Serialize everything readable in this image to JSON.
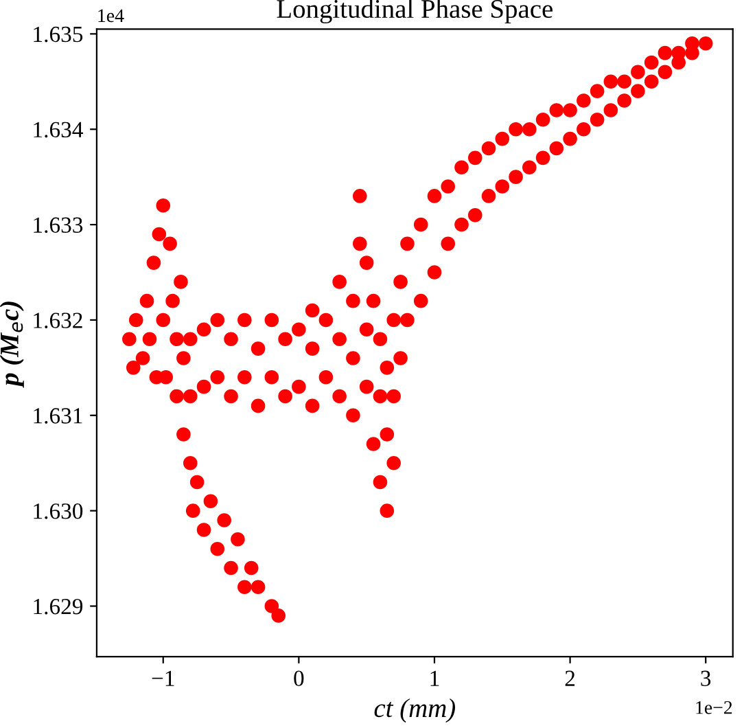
{
  "chart_data": {
    "type": "scatter",
    "title": "Longitudinal Phase Space",
    "xlabel": "ct (mm)",
    "ylabel": "p (M$_{e}$c)",
    "annotations": [
      "1e4",
      "1e−2"
    ],
    "xlim": [
      -1.49,
      3.2
    ],
    "xticks": [
      {
        "value": -1,
        "label": "−1"
      },
      0,
      1,
      2,
      3
    ],
    "ylim": [
      1.62847,
      1.63505
    ],
    "yticks": [
      {
        "value": 1.629,
        "label": "1.629"
      },
      {
        "value": 1.63,
        "label": "1.630"
      },
      {
        "value": 1.631,
        "label": "1.631"
      },
      {
        "value": 1.632,
        "label": "1.632"
      },
      {
        "value": 1.633,
        "label": "1.633"
      },
      {
        "value": 1.634,
        "label": "1.634"
      },
      {
        "value": 1.635,
        "label": "1.635"
      }
    ],
    "grid": false,
    "legend": false,
    "marker": "circle",
    "series": [
      {
        "color": "#ff0000",
        "x": [
          -1.25,
          -1.22,
          -1.2,
          -1.15,
          -1.12,
          -1.1,
          -1.07,
          -1.05,
          -1.03,
          -1.0,
          -1.0,
          -0.98,
          -0.95,
          -0.93,
          -0.9,
          -0.9,
          -0.87,
          -0.85,
          -0.8,
          -0.8,
          -0.7,
          -0.7,
          -0.6,
          -0.6,
          -0.5,
          -0.5,
          -0.4,
          -0.4,
          -0.3,
          -0.3,
          -0.2,
          -0.2,
          -0.1,
          -0.1,
          0.0,
          0.0,
          0.1,
          0.1,
          0.1,
          0.2,
          0.2,
          0.3,
          0.3,
          0.3,
          0.4,
          0.4,
          0.4,
          0.45,
          0.45,
          0.5,
          0.5,
          0.5,
          0.55,
          0.55,
          0.6,
          0.6,
          0.6,
          0.65,
          0.65,
          0.65,
          -0.85,
          -0.8,
          -0.78,
          -0.75,
          -0.7,
          -0.65,
          -0.6,
          -0.55,
          -0.5,
          -0.45,
          -0.4,
          -0.35,
          -0.3,
          -0.2,
          -0.15,
          0.7,
          0.7,
          0.7,
          0.75,
          0.75,
          0.8,
          0.8,
          0.9,
          0.9,
          1.0,
          1.0,
          1.1,
          1.1,
          1.2,
          1.2,
          1.3,
          1.3,
          1.4,
          1.4,
          1.5,
          1.5,
          1.6,
          1.6,
          1.7,
          1.7,
          1.8,
          1.8,
          1.9,
          1.9,
          2.0,
          2.0,
          2.1,
          2.1,
          2.2,
          2.2,
          2.3,
          2.3,
          2.4,
          2.4,
          2.5,
          2.5,
          2.6,
          2.6,
          2.7,
          2.7,
          2.8,
          2.8,
          2.9,
          2.9,
          3.0
        ],
        "values": [
          1.6318,
          1.6315,
          1.632,
          1.6316,
          1.6322,
          1.6318,
          1.6326,
          1.6314,
          1.6329,
          1.6332,
          1.632,
          1.6314,
          1.6328,
          1.6322,
          1.6312,
          1.6318,
          1.6324,
          1.6316,
          1.6312,
          1.6318,
          1.6313,
          1.6319,
          1.6314,
          1.632,
          1.6312,
          1.6318,
          1.6314,
          1.632,
          1.6311,
          1.6317,
          1.6314,
          1.632,
          1.6312,
          1.6318,
          1.6313,
          1.6319,
          1.6311,
          1.6317,
          1.6321,
          1.6314,
          1.632,
          1.6312,
          1.6318,
          1.6324,
          1.631,
          1.6316,
          1.6322,
          1.6328,
          1.6333,
          1.6313,
          1.6319,
          1.6326,
          1.6322,
          1.6307,
          1.6303,
          1.6312,
          1.6318,
          1.63,
          1.6308,
          1.6315,
          1.6308,
          1.6305,
          1.63,
          1.6303,
          1.6298,
          1.6301,
          1.6296,
          1.6299,
          1.6294,
          1.6297,
          1.6292,
          1.6294,
          1.6292,
          1.629,
          1.6289,
          1.6305,
          1.6312,
          1.632,
          1.6316,
          1.6324,
          1.632,
          1.6328,
          1.6322,
          1.633,
          1.6325,
          1.6333,
          1.6328,
          1.6334,
          1.633,
          1.6336,
          1.6331,
          1.6337,
          1.6333,
          1.6338,
          1.6334,
          1.6339,
          1.6335,
          1.634,
          1.6336,
          1.634,
          1.6337,
          1.6341,
          1.6338,
          1.6342,
          1.6339,
          1.6342,
          1.634,
          1.6343,
          1.6341,
          1.6344,
          1.6342,
          1.6345,
          1.6343,
          1.6345,
          1.6344,
          1.6346,
          1.6345,
          1.6347,
          1.6346,
          1.6348,
          1.6347,
          1.6348,
          1.6348,
          1.6349,
          1.6349
        ]
      }
    ]
  }
}
